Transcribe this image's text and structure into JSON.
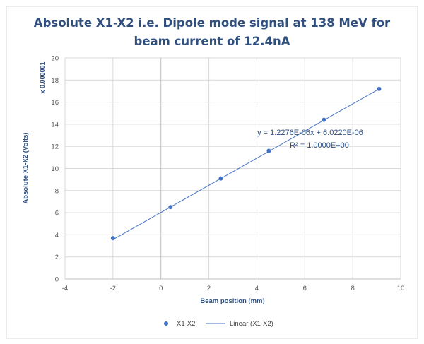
{
  "chart_data": {
    "type": "scatter",
    "title_line1": "Absolute X1-X2 i.e. Dipole mode signal at 138 MeV for",
    "title_line2": "beam current of 12.4nA",
    "xlabel": "Beam position (mm)",
    "ylabel": "Absolute X1-X2 (Volts)",
    "y_multiplier": "x 0.000001",
    "xlim": [
      -4,
      10
    ],
    "ylim": [
      0,
      20
    ],
    "x_ticks": [
      -4,
      -2,
      0,
      2,
      4,
      6,
      8,
      10
    ],
    "y_ticks": [
      0,
      2,
      4,
      6,
      8,
      10,
      12,
      14,
      16,
      18,
      20
    ],
    "grid": true,
    "legend_position": "bottom",
    "series": [
      {
        "name": "X1-X2",
        "color": "#4472c4",
        "x": [
          -2,
          0.4,
          2.5,
          4.5,
          6.8,
          9.1
        ],
        "y": [
          3.7,
          6.5,
          9.1,
          11.6,
          14.4,
          17.2
        ]
      }
    ],
    "trendline": {
      "name": "Linear (X1-X2)",
      "color": "#4472c4",
      "slope": 1.2276,
      "intercept": 6.022,
      "equation": "y = 1.2276E-06x + 6.0220E-06",
      "r2_label": "R² = 1.0000E+00"
    }
  }
}
